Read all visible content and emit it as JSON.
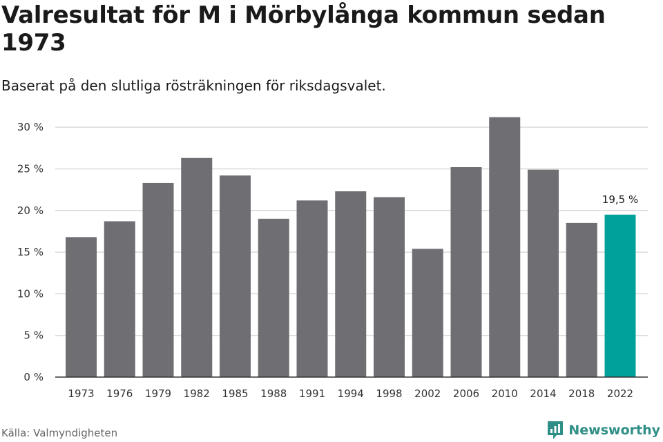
{
  "header": {
    "title": "Valresultat för M i Mörbylånga kommun sedan 1973",
    "subtitle": "Baserat på den slutliga rösträkningen för riksdagsvalet."
  },
  "footer": {
    "source": "Källa: Valmyndigheten",
    "brand": "Newsworthy",
    "brand_icon": "newsworthy-logo-icon"
  },
  "colors": {
    "bar": "#6f6e73",
    "highlight": "#00a19a",
    "grid": "#d9d9d9",
    "axis": "#333333",
    "brand": "#2f8f86"
  },
  "chart_data": {
    "type": "bar",
    "categories": [
      "1973",
      "1976",
      "1979",
      "1982",
      "1985",
      "1988",
      "1991",
      "1994",
      "1998",
      "2002",
      "2006",
      "2010",
      "2014",
      "2018",
      "2022"
    ],
    "values": [
      16.8,
      18.7,
      23.3,
      26.3,
      24.2,
      19.0,
      21.2,
      22.3,
      21.6,
      15.4,
      25.2,
      31.2,
      24.9,
      18.5,
      19.5
    ],
    "highlight_index": 14,
    "data_labels": [
      {
        "index": 14,
        "text": "19,5 %"
      }
    ],
    "yticks": [
      0,
      5,
      10,
      15,
      20,
      25,
      30
    ],
    "ytick_labels": [
      "0 %",
      "5 %",
      "10 %",
      "15 %",
      "20 %",
      "25 %",
      "30 %"
    ],
    "ylim": [
      0,
      32
    ],
    "grid": true,
    "legend": "none",
    "xlabel": "",
    "ylabel": ""
  }
}
